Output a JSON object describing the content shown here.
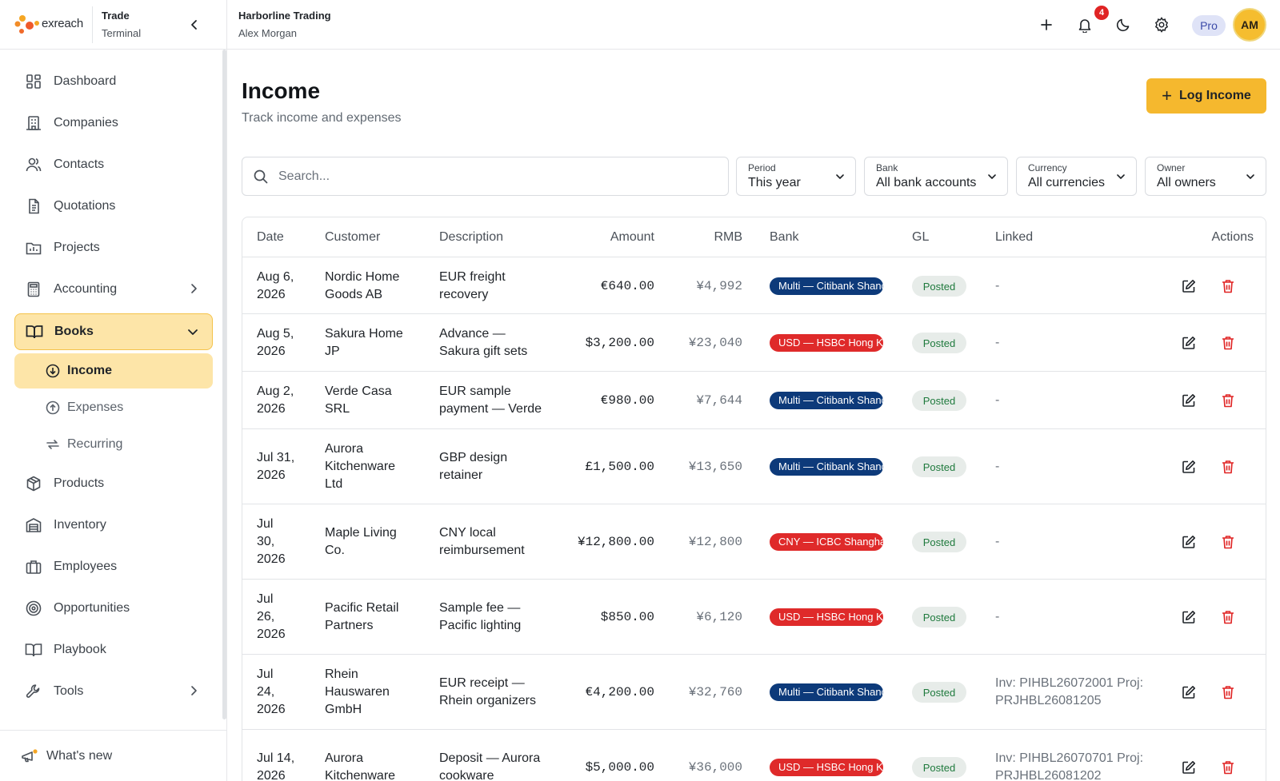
{
  "brand": {
    "logo_text": "exreach",
    "title": "Trade",
    "subtitle": "Terminal"
  },
  "topbar": {
    "company": "Harborline Trading",
    "user": "Alex Morgan",
    "notification_count": "4",
    "plan": "Pro",
    "avatar_initials": "AM"
  },
  "sidebar": {
    "items": [
      {
        "label": "Dashboard",
        "icon": "dashboard-icon"
      },
      {
        "label": "Companies",
        "icon": "building-icon"
      },
      {
        "label": "Contacts",
        "icon": "users-icon"
      },
      {
        "label": "Quotations",
        "icon": "document-icon"
      },
      {
        "label": "Projects",
        "icon": "folder-icon"
      },
      {
        "label": "Accounting",
        "icon": "calculator-icon"
      },
      {
        "label": "Books",
        "icon": "book-open-icon"
      },
      {
        "label": "Products",
        "icon": "box-icon"
      },
      {
        "label": "Inventory",
        "icon": "warehouse-icon"
      },
      {
        "label": "Employees",
        "icon": "briefcase-icon"
      },
      {
        "label": "Opportunities",
        "icon": "target-icon"
      },
      {
        "label": "Playbook",
        "icon": "book-icon"
      },
      {
        "label": "Tools",
        "icon": "wrench-icon"
      }
    ],
    "sub_items": [
      {
        "label": "Income",
        "icon": "arrow-down-circle-icon"
      },
      {
        "label": "Expenses",
        "icon": "arrow-up-circle-icon"
      },
      {
        "label": "Recurring",
        "icon": "repeat-icon"
      }
    ],
    "whats_new": "What's new"
  },
  "page": {
    "title": "Income",
    "subtitle": "Track income and expenses",
    "log_button": "Log Income"
  },
  "search": {
    "placeholder": "Search..."
  },
  "filters": [
    {
      "label": "Period",
      "value": "This year"
    },
    {
      "label": "Bank",
      "value": "All bank accounts"
    },
    {
      "label": "Currency",
      "value": "All currencies"
    },
    {
      "label": "Owner",
      "value": "All owners"
    }
  ],
  "table": {
    "headers": [
      "Date",
      "Customer",
      "Description",
      "Amount",
      "RMB",
      "Bank",
      "GL",
      "Linked",
      "Actions"
    ],
    "rows": [
      {
        "date": "Aug 6,\n2026",
        "customer": "Nordic Home\nGoods AB",
        "description": "EUR freight\nrecovery",
        "amount": "€640.00",
        "rmb": "¥4,992",
        "bank": "Multi — Citibank Shanghai",
        "bank_color": "#0d3a7a",
        "gl": "Posted",
        "linked": "-"
      },
      {
        "date": "Aug 5,\n2026",
        "customer": "Sakura Home\nJP",
        "description": "Advance —\nSakura gift sets",
        "amount": "$3,200.00",
        "rmb": "¥23,040",
        "bank": "USD — HSBC Hong Kong",
        "bank_color": "#df2a2a",
        "gl": "Posted",
        "linked": "-"
      },
      {
        "date": "Aug 2,\n2026",
        "customer": "Verde Casa\nSRL",
        "description": "EUR sample\npayment — Verde",
        "amount": "€980.00",
        "rmb": "¥7,644",
        "bank": "Multi — Citibank Shanghai",
        "bank_color": "#0d3a7a",
        "gl": "Posted",
        "linked": "-"
      },
      {
        "date": "Jul 31,\n2026",
        "customer": "Aurora\nKitchenware\nLtd",
        "description": "GBP design\nretainer",
        "amount": "£1,500.00",
        "rmb": "¥13,650",
        "bank": "Multi — Citibank Shanghai",
        "bank_color": "#0d3a7a",
        "gl": "Posted",
        "linked": "-"
      },
      {
        "date": "Jul\n30,\n2026",
        "customer": "Maple Living\nCo.",
        "description": "CNY local\nreimbursement",
        "amount": "¥12,800.00",
        "rmb": "¥12,800",
        "bank": "CNY — ICBC Shanghai",
        "bank_color": "#df2a2a",
        "gl": "Posted",
        "linked": "-"
      },
      {
        "date": "Jul\n26,\n2026",
        "customer": "Pacific Retail\nPartners",
        "description": "Sample fee —\nPacific lighting",
        "amount": "$850.00",
        "rmb": "¥6,120",
        "bank": "USD — HSBC Hong Kong",
        "bank_color": "#df2a2a",
        "gl": "Posted",
        "linked": "-"
      },
      {
        "date": "Jul\n24,\n2026",
        "customer": "Rhein\nHauswaren\nGmbH",
        "description": "EUR receipt —\nRhein organizers",
        "amount": "€4,200.00",
        "rmb": "¥32,760",
        "bank": "Multi — Citibank Shanghai",
        "bank_color": "#0d3a7a",
        "gl": "Posted",
        "linked": "Inv: PIHBL26072001  Proj:\nPRJHBL26081205"
      },
      {
        "date": "Jul 14,\n2026",
        "customer": "Aurora\nKitchenware",
        "description": "Deposit — Aurora\ncookware",
        "amount": "$5,000.00",
        "rmb": "¥36,000",
        "bank": "USD — HSBC Hong Kong",
        "bank_color": "#df2a2a",
        "gl": "Posted",
        "linked": "Inv: PIHBL26070701  Proj:\nPRJHBL26081202"
      }
    ]
  },
  "colors": {
    "accent": "#f5b82e",
    "active_bg": "#fde5a8",
    "posted_text": "#1f7a3d",
    "delete_red": "#e02424"
  }
}
